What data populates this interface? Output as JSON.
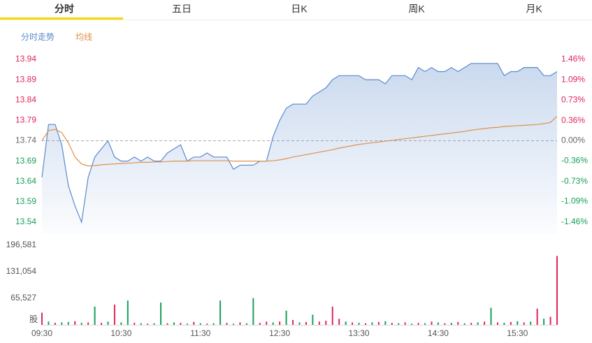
{
  "tabs": [
    "分时",
    "五日",
    "日K",
    "周K",
    "月K"
  ],
  "active_tab": 0,
  "chart_data": [
    {
      "type": "line",
      "x": [
        0,
        5,
        10,
        15,
        20,
        25,
        30,
        35,
        40,
        45,
        50,
        55,
        60,
        65,
        70,
        75,
        80,
        85,
        90,
        95,
        100,
        105,
        110,
        115,
        120,
        125,
        130,
        135,
        140,
        145,
        150,
        155,
        160,
        165,
        170,
        175,
        180,
        185,
        190,
        195,
        200,
        205,
        210,
        215,
        220,
        225,
        230,
        235,
        240,
        245,
        250,
        255,
        260,
        265,
        270,
        275,
        280,
        285,
        290,
        295,
        300,
        305,
        310,
        315,
        320,
        325,
        330,
        335,
        340,
        345,
        350,
        355,
        360,
        365,
        370,
        375,
        380,
        385,
        390
      ],
      "xlim": [
        0,
        390
      ],
      "series": [
        {
          "name": "分时走势",
          "color": "#5a89cc",
          "values": [
            13.65,
            13.78,
            13.78,
            13.73,
            13.63,
            13.58,
            13.54,
            13.65,
            13.7,
            13.72,
            13.74,
            13.7,
            13.69,
            13.69,
            13.7,
            13.69,
            13.7,
            13.69,
            13.69,
            13.71,
            13.72,
            13.73,
            13.69,
            13.7,
            13.7,
            13.71,
            13.7,
            13.7,
            13.7,
            13.67,
            13.68,
            13.68,
            13.68,
            13.69,
            13.69,
            13.75,
            13.79,
            13.82,
            13.83,
            13.83,
            13.83,
            13.85,
            13.86,
            13.87,
            13.89,
            13.9,
            13.9,
            13.9,
            13.9,
            13.89,
            13.89,
            13.89,
            13.88,
            13.9,
            13.9,
            13.9,
            13.89,
            13.92,
            13.91,
            13.92,
            13.91,
            13.91,
            13.92,
            13.91,
            13.92,
            13.93,
            13.93,
            13.93,
            13.93,
            13.93,
            13.9,
            13.91,
            13.91,
            13.92,
            13.92,
            13.92,
            13.9,
            13.9,
            13.91
          ]
        },
        {
          "name": "均线",
          "color": "#e0904a",
          "values": [
            13.74,
            13.765,
            13.768,
            13.76,
            13.735,
            13.7,
            13.683,
            13.678,
            13.679,
            13.681,
            13.682,
            13.683,
            13.684,
            13.685,
            13.686,
            13.687,
            13.687,
            13.688,
            13.688,
            13.689,
            13.69,
            13.69,
            13.69,
            13.691,
            13.691,
            13.691,
            13.691,
            13.691,
            13.691,
            13.69,
            13.69,
            13.69,
            13.69,
            13.69,
            13.69,
            13.691,
            13.693,
            13.696,
            13.7,
            13.703,
            13.706,
            13.709,
            13.712,
            13.715,
            13.718,
            13.722,
            13.725,
            13.728,
            13.731,
            13.733,
            13.735,
            13.737,
            13.739,
            13.741,
            13.743,
            13.745,
            13.747,
            13.749,
            13.751,
            13.753,
            13.755,
            13.757,
            13.759,
            13.761,
            13.763,
            13.766,
            13.768,
            13.77,
            13.772,
            13.773,
            13.775,
            13.776,
            13.777,
            13.778,
            13.779,
            13.78,
            13.782,
            13.785,
            13.8
          ]
        }
      ],
      "ylim": [
        13.54,
        13.94
      ],
      "yticks": [
        13.94,
        13.89,
        13.84,
        13.79,
        13.74,
        13.69,
        13.64,
        13.59,
        13.54
      ],
      "y2lim": [
        -1.46,
        1.46
      ],
      "y2ticks": [
        {
          "value": 1.46,
          "label": "1.46%"
        },
        {
          "value": 1.09,
          "label": "1.09%"
        },
        {
          "value": 0.73,
          "label": "0.73%"
        },
        {
          "value": 0.36,
          "label": "0.36%"
        },
        {
          "value": 0,
          "label": "0.00%"
        },
        {
          "value": -0.36,
          "label": "-0.36%"
        },
        {
          "value": -0.73,
          "label": "-0.73%"
        },
        {
          "value": -1.09,
          "label": "-1.09%"
        },
        {
          "value": -1.46,
          "label": "-1.46%"
        }
      ],
      "reference_line": 13.74,
      "grid": false
    },
    {
      "type": "bar",
      "x": [
        0,
        5,
        10,
        15,
        20,
        25,
        30,
        35,
        40,
        45,
        50,
        55,
        60,
        65,
        70,
        75,
        80,
        85,
        90,
        95,
        100,
        105,
        110,
        115,
        120,
        125,
        130,
        135,
        140,
        145,
        150,
        155,
        160,
        165,
        170,
        175,
        180,
        185,
        190,
        195,
        200,
        205,
        210,
        215,
        220,
        225,
        230,
        235,
        240,
        245,
        250,
        255,
        260,
        265,
        270,
        275,
        280,
        285,
        290,
        295,
        300,
        305,
        310,
        315,
        320,
        325,
        330,
        335,
        340,
        345,
        350,
        355,
        360,
        365,
        370,
        375,
        380,
        385,
        390
      ],
      "xlim": [
        0,
        390
      ],
      "xticks": [
        {
          "value": 0,
          "label": "09:30"
        },
        {
          "value": 60,
          "label": "10:30"
        },
        {
          "value": 120,
          "label": "11:30"
        },
        {
          "value": 180,
          "label": "12:30"
        },
        {
          "value": 240,
          "label": "13:30"
        },
        {
          "value": 300,
          "label": "14:30"
        },
        {
          "value": 360,
          "label": "15:30"
        }
      ],
      "values": [
        30000,
        8000,
        5000,
        6000,
        7000,
        9000,
        5000,
        6000,
        45000,
        5000,
        8000,
        50000,
        6000,
        60000,
        5000,
        4000,
        3000,
        4000,
        55000,
        4000,
        6000,
        5000,
        3000,
        7000,
        4000,
        3000,
        4000,
        60000,
        5000,
        3000,
        6000,
        4000,
        66000,
        5000,
        8000,
        6000,
        8000,
        35000,
        12000,
        6000,
        7000,
        25000,
        8000,
        10000,
        45000,
        15000,
        8000,
        6000,
        5000,
        4000,
        6000,
        7000,
        9000,
        5000,
        4000,
        6000,
        3000,
        5000,
        4000,
        8000,
        6000,
        4000,
        5000,
        7000,
        4000,
        5000,
        6000,
        8000,
        42000,
        6000,
        5000,
        7000,
        9000,
        6000,
        8000,
        40000,
        15000,
        20000,
        170000
      ],
      "colors": [
        "#e2245a",
        "#18a058",
        "#e2245a",
        "#18a058",
        "#18a058",
        "#e2245a",
        "#18a058",
        "#e2245a",
        "#18a058",
        "#e2245a",
        "#18a058",
        "#e2245a",
        "#18a058",
        "#18a058",
        "#e2245a",
        "#18a058",
        "#e2245a",
        "#18a058",
        "#18a058",
        "#e2245a",
        "#18a058",
        "#e2245a",
        "#18a058",
        "#e2245a",
        "#18a058",
        "#e2245a",
        "#18a058",
        "#18a058",
        "#e2245a",
        "#18a058",
        "#e2245a",
        "#18a058",
        "#18a058",
        "#e2245a",
        "#e2245a",
        "#18a058",
        "#e2245a",
        "#18a058",
        "#e2245a",
        "#18a058",
        "#e2245a",
        "#18a058",
        "#e2245a",
        "#e2245a",
        "#e2245a",
        "#e2245a",
        "#18a058",
        "#e2245a",
        "#18a058",
        "#e2245a",
        "#18a058",
        "#e2245a",
        "#18a058",
        "#e2245a",
        "#18a058",
        "#e2245a",
        "#18a058",
        "#e2245a",
        "#18a058",
        "#e2245a",
        "#18a058",
        "#e2245a",
        "#18a058",
        "#e2245a",
        "#18a058",
        "#e2245a",
        "#18a058",
        "#e2245a",
        "#18a058",
        "#e2245a",
        "#18a058",
        "#e2245a",
        "#18a058",
        "#e2245a",
        "#18a058",
        "#e2245a",
        "#18a058",
        "#e2245a",
        "#e2245a"
      ],
      "ylim": [
        0,
        196581
      ],
      "yticks": [
        {
          "value": 196581,
          "label": "196,581"
        },
        {
          "value": 131054,
          "label": "131,054"
        },
        {
          "value": 65527,
          "label": "65,527"
        }
      ],
      "y_unit": "股"
    }
  ]
}
